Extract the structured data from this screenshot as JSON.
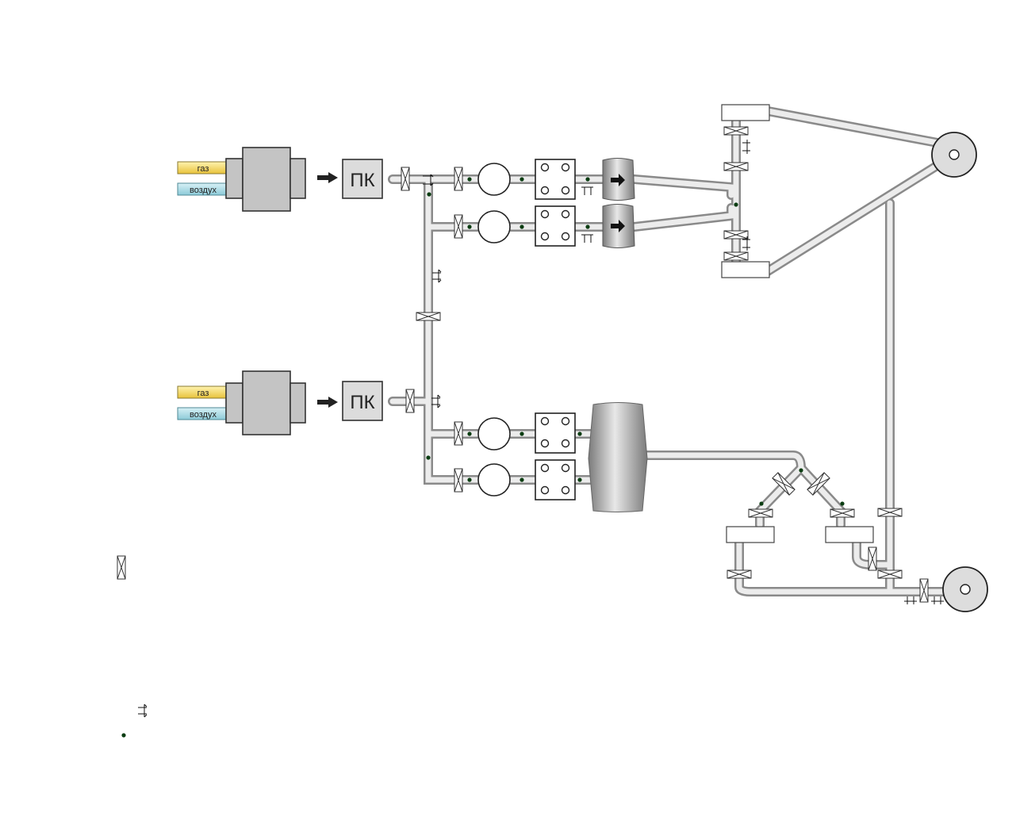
{
  "units": [
    {
      "gas_label": "газ",
      "air_label": "воздух",
      "converter_label": "ПК"
    },
    {
      "gas_label": "газ",
      "air_label": "воздух",
      "converter_label": "ПК"
    }
  ],
  "colors": {
    "pipe_light": "#f2f2f2",
    "pipe_mid": "#c8c8c8",
    "pipe_dark": "#8c8c8c",
    "gas_fill": "#f5d75a",
    "air_fill": "#a9dbe6",
    "box_fill": "#c4c4c4",
    "indicator": "#0b3d12"
  },
  "legend": {
    "valve_icon": "valve-icon",
    "sensor_icon": "sensor-mark-icon",
    "point_icon": "indicator-dot-icon"
  }
}
